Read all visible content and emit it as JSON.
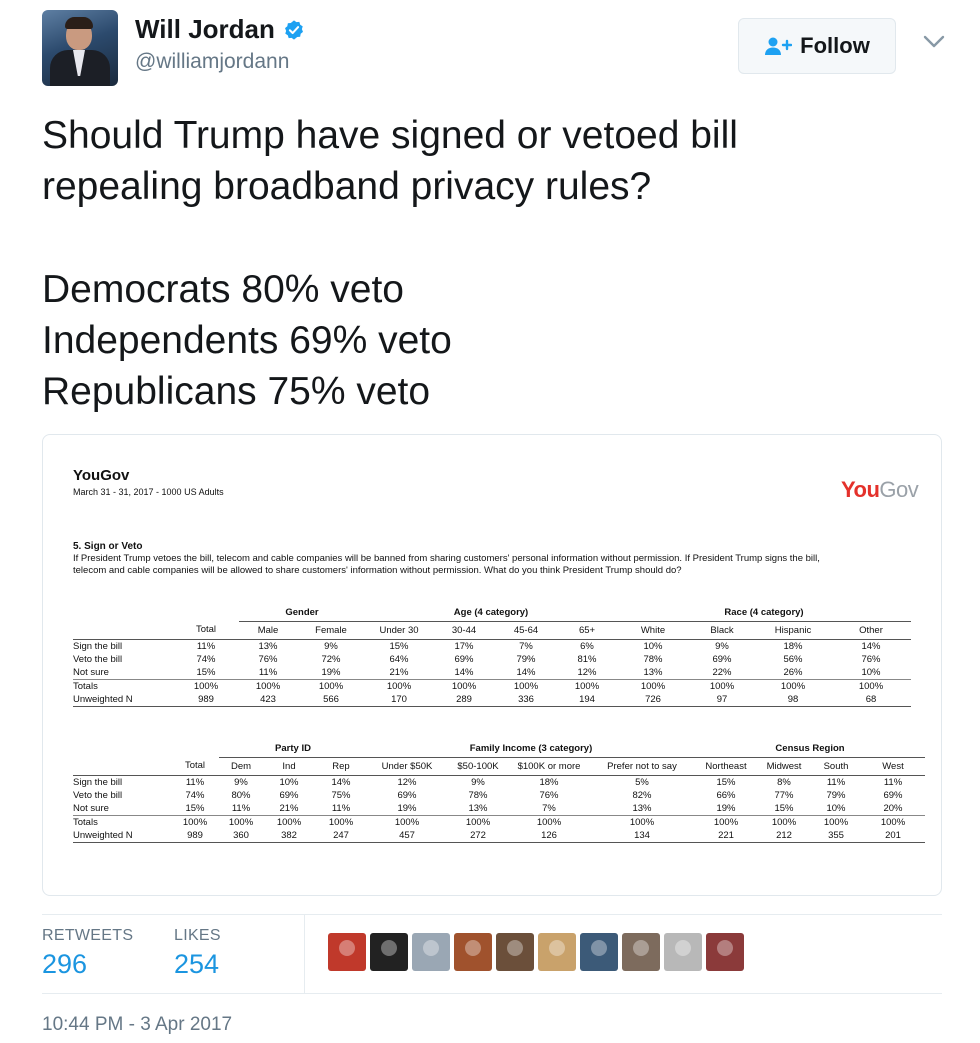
{
  "user": {
    "name": "Will Jordan",
    "handle": "@williamjordann",
    "follow_label": "Follow"
  },
  "tweet": {
    "lines": [
      "Should Trump have signed or vetoed bill",
      "repealing broadband privacy rules?",
      "Democrats 80% veto",
      "Independents 69% veto",
      "Republicans 75% veto"
    ]
  },
  "image": {
    "org": "YouGov",
    "subtitle": "March 31 - 31, 2017 - 1000 US Adults",
    "logo_a": "You",
    "logo_b": "Gov",
    "question_title": "5. Sign or Veto",
    "question_text": "If President Trump vetoes the bill, telecom and cable companies will be banned from sharing customers' personal information without permission. If President Trump signs the bill, telecom and cable companies will be allowed to share customers' information without permission. What do you think President Trump should do?",
    "table1": {
      "groups": [
        "Gender",
        "Age (4 category)",
        "Race (4 category)"
      ],
      "headers": [
        "Total",
        "Male",
        "Female",
        "Under 30",
        "30-44",
        "45-64",
        "65+",
        "White",
        "Black",
        "Hispanic",
        "Other"
      ],
      "rows": [
        {
          "label": "Sign the bill",
          "values": [
            "11%",
            "13%",
            "9%",
            "15%",
            "17%",
            "7%",
            "6%",
            "10%",
            "9%",
            "18%",
            "14%"
          ]
        },
        {
          "label": "Veto the bill",
          "values": [
            "74%",
            "76%",
            "72%",
            "64%",
            "69%",
            "79%",
            "81%",
            "78%",
            "69%",
            "56%",
            "76%"
          ]
        },
        {
          "label": "Not sure",
          "values": [
            "15%",
            "11%",
            "19%",
            "21%",
            "14%",
            "14%",
            "12%",
            "13%",
            "22%",
            "26%",
            "10%"
          ]
        }
      ],
      "totals": {
        "label": "Totals",
        "values": [
          "100%",
          "100%",
          "100%",
          "100%",
          "100%",
          "100%",
          "100%",
          "100%",
          "100%",
          "100%",
          "100%"
        ]
      },
      "unweighted": {
        "label": "Unweighted N",
        "values": [
          "989",
          "423",
          "566",
          "170",
          "289",
          "336",
          "194",
          "726",
          "97",
          "98",
          "68"
        ]
      }
    },
    "table2": {
      "groups": [
        "Party ID",
        "Family Income (3 category)",
        "Census Region"
      ],
      "headers": [
        "Total",
        "Dem",
        "Ind",
        "Rep",
        "Under $50K",
        "$50-100K",
        "$100K or more",
        "Prefer not to say",
        "Northeast",
        "Midwest",
        "South",
        "West"
      ],
      "rows": [
        {
          "label": "Sign the bill",
          "values": [
            "11%",
            "9%",
            "10%",
            "14%",
            "12%",
            "9%",
            "18%",
            "5%",
            "15%",
            "8%",
            "11%",
            "11%"
          ]
        },
        {
          "label": "Veto the bill",
          "values": [
            "74%",
            "80%",
            "69%",
            "75%",
            "69%",
            "78%",
            "76%",
            "82%",
            "66%",
            "77%",
            "79%",
            "69%"
          ]
        },
        {
          "label": "Not sure",
          "values": [
            "15%",
            "11%",
            "21%",
            "11%",
            "19%",
            "13%",
            "7%",
            "13%",
            "19%",
            "15%",
            "10%",
            "20%"
          ]
        }
      ],
      "totals": {
        "label": "Totals",
        "values": [
          "100%",
          "100%",
          "100%",
          "100%",
          "100%",
          "100%",
          "100%",
          "100%",
          "100%",
          "100%",
          "100%",
          "100%"
        ]
      },
      "unweighted": {
        "label": "Unweighted N",
        "values": [
          "989",
          "360",
          "382",
          "247",
          "457",
          "272",
          "126",
          "134",
          "221",
          "212",
          "355",
          "201"
        ]
      }
    }
  },
  "stats": {
    "retweets_label": "RETWEETS",
    "retweets": "296",
    "likes_label": "LIKES",
    "likes": "254"
  },
  "facepile_colors": [
    "#c0392b",
    "#222222",
    "#9aa7b4",
    "#a0522d",
    "#6b4f3a",
    "#c9a26b",
    "#3c5a78",
    "#7d6b5d",
    "#b8b8b8",
    "#8b3a3a"
  ],
  "timestamp": "10:44 PM - 3 Apr 2017",
  "colors": {
    "link_blue": "#1b95e0",
    "verified_blue": "#1da1f2",
    "muted_gray": "#657786",
    "yougov_red": "#e4312b"
  }
}
